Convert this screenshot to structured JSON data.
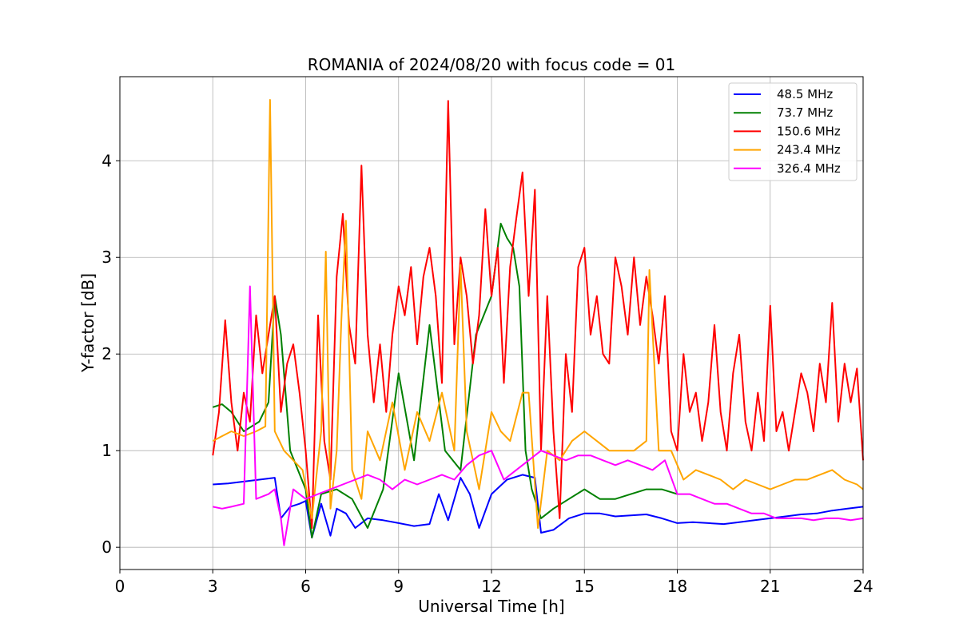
{
  "chart_data": {
    "type": "line",
    "title": "ROMANIA of 2024/08/20 with focus code = 01",
    "xlabel": "Universal Time [h]",
    "ylabel": "Y-factor [dB]",
    "xlim": [
      0,
      24
    ],
    "ylim": [
      -0.23,
      4.87
    ],
    "xticks": [
      0,
      3,
      6,
      9,
      12,
      15,
      18,
      21,
      24
    ],
    "yticks": [
      0,
      1,
      2,
      3,
      4
    ],
    "grid": true,
    "legend_position": "top-right",
    "series": [
      {
        "name": "48.5 MHz",
        "color": "#0000ff",
        "x": [
          3.0,
          3.5,
          4.0,
          4.5,
          5.0,
          5.2,
          5.5,
          5.8,
          6.0,
          6.2,
          6.5,
          6.8,
          7.0,
          7.3,
          7.6,
          8.0,
          8.5,
          9.0,
          9.5,
          10.0,
          10.3,
          10.6,
          11.0,
          11.3,
          11.6,
          12.0,
          12.5,
          13.0,
          13.4,
          13.6,
          14.0,
          14.5,
          15.0,
          15.5,
          16.0,
          16.5,
          17.0,
          17.5,
          18.0,
          18.5,
          19.0,
          19.5,
          20.0,
          20.5,
          21.0,
          21.5,
          22.0,
          22.5,
          23.0,
          23.5,
          24.0
        ],
        "y": [
          0.65,
          0.66,
          0.68,
          0.7,
          0.72,
          0.3,
          0.42,
          0.45,
          0.48,
          0.1,
          0.45,
          0.12,
          0.4,
          0.35,
          0.2,
          0.3,
          0.28,
          0.25,
          0.22,
          0.24,
          0.55,
          0.28,
          0.72,
          0.55,
          0.2,
          0.55,
          0.7,
          0.75,
          0.72,
          0.15,
          0.18,
          0.3,
          0.35,
          0.35,
          0.32,
          0.33,
          0.34,
          0.3,
          0.25,
          0.26,
          0.25,
          0.24,
          0.26,
          0.28,
          0.3,
          0.32,
          0.34,
          0.35,
          0.38,
          0.4,
          0.42
        ]
      },
      {
        "name": "73.7 MHz",
        "color": "#008000",
        "x": [
          3.0,
          3.3,
          3.6,
          4.0,
          4.5,
          4.8,
          5.0,
          5.2,
          5.5,
          6.0,
          6.2,
          6.5,
          7.0,
          7.5,
          8.0,
          8.5,
          9.0,
          9.5,
          10.0,
          10.5,
          11.0,
          11.5,
          12.0,
          12.3,
          12.5,
          12.7,
          12.9,
          13.1,
          13.3,
          13.6,
          14.0,
          14.5,
          15.0,
          15.5,
          16.0,
          16.5,
          17.0,
          17.5,
          18.0
        ],
        "y": [
          1.45,
          1.48,
          1.4,
          1.2,
          1.3,
          1.5,
          2.6,
          2.2,
          1.0,
          0.6,
          0.1,
          0.55,
          0.6,
          0.5,
          0.2,
          0.6,
          1.8,
          0.9,
          2.3,
          1.0,
          0.8,
          2.2,
          2.6,
          3.35,
          3.2,
          3.1,
          2.7,
          1.0,
          0.6,
          0.3,
          0.4,
          0.5,
          0.6,
          0.5,
          0.5,
          0.55,
          0.6,
          0.6,
          0.55
        ]
      },
      {
        "name": "150.6 MHz",
        "color": "#ff0000",
        "x": [
          3.0,
          3.2,
          3.4,
          3.6,
          3.8,
          4.0,
          4.2,
          4.4,
          4.6,
          4.8,
          5.0,
          5.2,
          5.4,
          5.6,
          5.8,
          6.0,
          6.2,
          6.4,
          6.6,
          6.8,
          7.0,
          7.2,
          7.4,
          7.6,
          7.8,
          8.0,
          8.2,
          8.4,
          8.6,
          8.8,
          9.0,
          9.2,
          9.4,
          9.6,
          9.8,
          10.0,
          10.2,
          10.4,
          10.6,
          10.8,
          11.0,
          11.2,
          11.4,
          11.6,
          11.8,
          12.0,
          12.2,
          12.4,
          12.6,
          12.8,
          13.0,
          13.2,
          13.4,
          13.6,
          13.8,
          14.0,
          14.2,
          14.4,
          14.6,
          14.8,
          15.0,
          15.2,
          15.4,
          15.6,
          15.8,
          16.0,
          16.2,
          16.4,
          16.6,
          16.8,
          17.0,
          17.2,
          17.4,
          17.6,
          17.8,
          18.0,
          18.2,
          18.4,
          18.6,
          18.8,
          19.0,
          19.2,
          19.4,
          19.6,
          19.8,
          20.0,
          20.2,
          20.4,
          20.6,
          20.8,
          21.0,
          21.2,
          21.4,
          21.6,
          21.8,
          22.0,
          22.2,
          22.4,
          22.6,
          22.8,
          23.0,
          23.2,
          23.4,
          23.6,
          23.8,
          24.0
        ],
        "y": [
          0.95,
          1.4,
          2.35,
          1.5,
          1.0,
          1.6,
          1.3,
          2.4,
          1.8,
          2.2,
          2.6,
          1.4,
          1.9,
          2.1,
          1.6,
          1.0,
          0.2,
          2.4,
          1.1,
          0.7,
          2.8,
          3.45,
          2.3,
          1.9,
          3.95,
          2.2,
          1.5,
          2.1,
          1.4,
          2.2,
          2.7,
          2.4,
          2.9,
          2.1,
          2.8,
          3.1,
          2.6,
          1.7,
          4.62,
          2.1,
          3.0,
          2.6,
          1.9,
          2.4,
          3.5,
          2.6,
          3.1,
          1.7,
          2.9,
          3.4,
          3.88,
          2.6,
          3.7,
          1.0,
          2.6,
          1.2,
          0.3,
          2.0,
          1.4,
          2.9,
          3.1,
          2.2,
          2.6,
          2.0,
          1.9,
          3.0,
          2.7,
          2.2,
          3.0,
          2.3,
          2.8,
          2.4,
          1.9,
          2.6,
          1.2,
          1.0,
          2.0,
          1.4,
          1.6,
          1.1,
          1.5,
          2.3,
          1.4,
          1.0,
          1.8,
          2.2,
          1.3,
          1.0,
          1.6,
          1.1,
          2.5,
          1.2,
          1.4,
          1.0,
          1.4,
          1.8,
          1.6,
          1.2,
          1.9,
          1.5,
          2.53,
          1.3,
          1.9,
          1.5,
          1.85,
          0.9
        ]
      },
      {
        "name": "243.4 MHz",
        "color": "#ffa500",
        "x": [
          3.0,
          3.3,
          3.6,
          4.0,
          4.4,
          4.7,
          4.85,
          5.0,
          5.3,
          5.6,
          5.9,
          6.2,
          6.5,
          6.65,
          6.8,
          7.0,
          7.15,
          7.3,
          7.5,
          7.8,
          8.0,
          8.4,
          8.8,
          9.2,
          9.6,
          10.0,
          10.4,
          10.8,
          11.0,
          11.2,
          11.6,
          12.0,
          12.3,
          12.6,
          13.0,
          13.2,
          13.5,
          13.8,
          14.2,
          14.6,
          15.0,
          15.4,
          15.8,
          16.2,
          16.6,
          17.0,
          17.1,
          17.4,
          17.8,
          18.2,
          18.6,
          19.0,
          19.4,
          19.8,
          20.2,
          20.6,
          21.0,
          21.4,
          21.8,
          22.2,
          22.6,
          23.0,
          23.4,
          23.8,
          24.0
        ],
        "y": [
          1.1,
          1.15,
          1.2,
          1.15,
          1.2,
          1.25,
          4.63,
          1.2,
          1.0,
          0.9,
          0.8,
          0.3,
          1.2,
          3.06,
          0.4,
          1.0,
          2.34,
          3.38,
          0.8,
          0.5,
          1.2,
          0.9,
          1.5,
          0.8,
          1.4,
          1.1,
          1.6,
          1.0,
          2.92,
          1.2,
          0.6,
          1.4,
          1.2,
          1.1,
          1.6,
          1.6,
          0.2,
          1.0,
          0.9,
          1.1,
          1.2,
          1.1,
          1.0,
          1.0,
          1.0,
          1.1,
          2.87,
          1.0,
          1.0,
          0.7,
          0.8,
          0.75,
          0.7,
          0.6,
          0.7,
          0.65,
          0.6,
          0.65,
          0.7,
          0.7,
          0.75,
          0.8,
          0.7,
          0.65,
          0.6
        ]
      },
      {
        "name": "326.4 MHz",
        "color": "#ff00ff",
        "x": [
          3.0,
          3.3,
          3.6,
          4.0,
          4.2,
          4.4,
          4.8,
          5.0,
          5.2,
          5.3,
          5.6,
          6.0,
          6.4,
          6.8,
          7.2,
          7.6,
          8.0,
          8.4,
          8.8,
          9.2,
          9.6,
          10.0,
          10.4,
          10.8,
          11.2,
          11.6,
          12.0,
          12.4,
          12.8,
          13.2,
          13.6,
          14.0,
          14.4,
          14.8,
          15.2,
          15.6,
          16.0,
          16.4,
          16.8,
          17.2,
          17.6,
          18.0,
          18.4,
          18.8,
          19.2,
          19.6,
          20.0,
          20.4,
          20.8,
          21.2,
          21.6,
          22.0,
          22.4,
          22.8,
          23.2,
          23.6,
          24.0
        ],
        "y": [
          0.42,
          0.4,
          0.42,
          0.45,
          2.7,
          0.5,
          0.55,
          0.6,
          0.3,
          0.02,
          0.6,
          0.5,
          0.55,
          0.6,
          0.65,
          0.7,
          0.75,
          0.7,
          0.6,
          0.7,
          0.65,
          0.7,
          0.75,
          0.7,
          0.85,
          0.95,
          1.0,
          0.7,
          0.8,
          0.9,
          1.0,
          0.95,
          0.9,
          0.95,
          0.95,
          0.9,
          0.85,
          0.9,
          0.85,
          0.8,
          0.9,
          0.55,
          0.55,
          0.5,
          0.45,
          0.45,
          0.4,
          0.35,
          0.35,
          0.3,
          0.3,
          0.3,
          0.28,
          0.3,
          0.3,
          0.28,
          0.3
        ]
      }
    ]
  }
}
